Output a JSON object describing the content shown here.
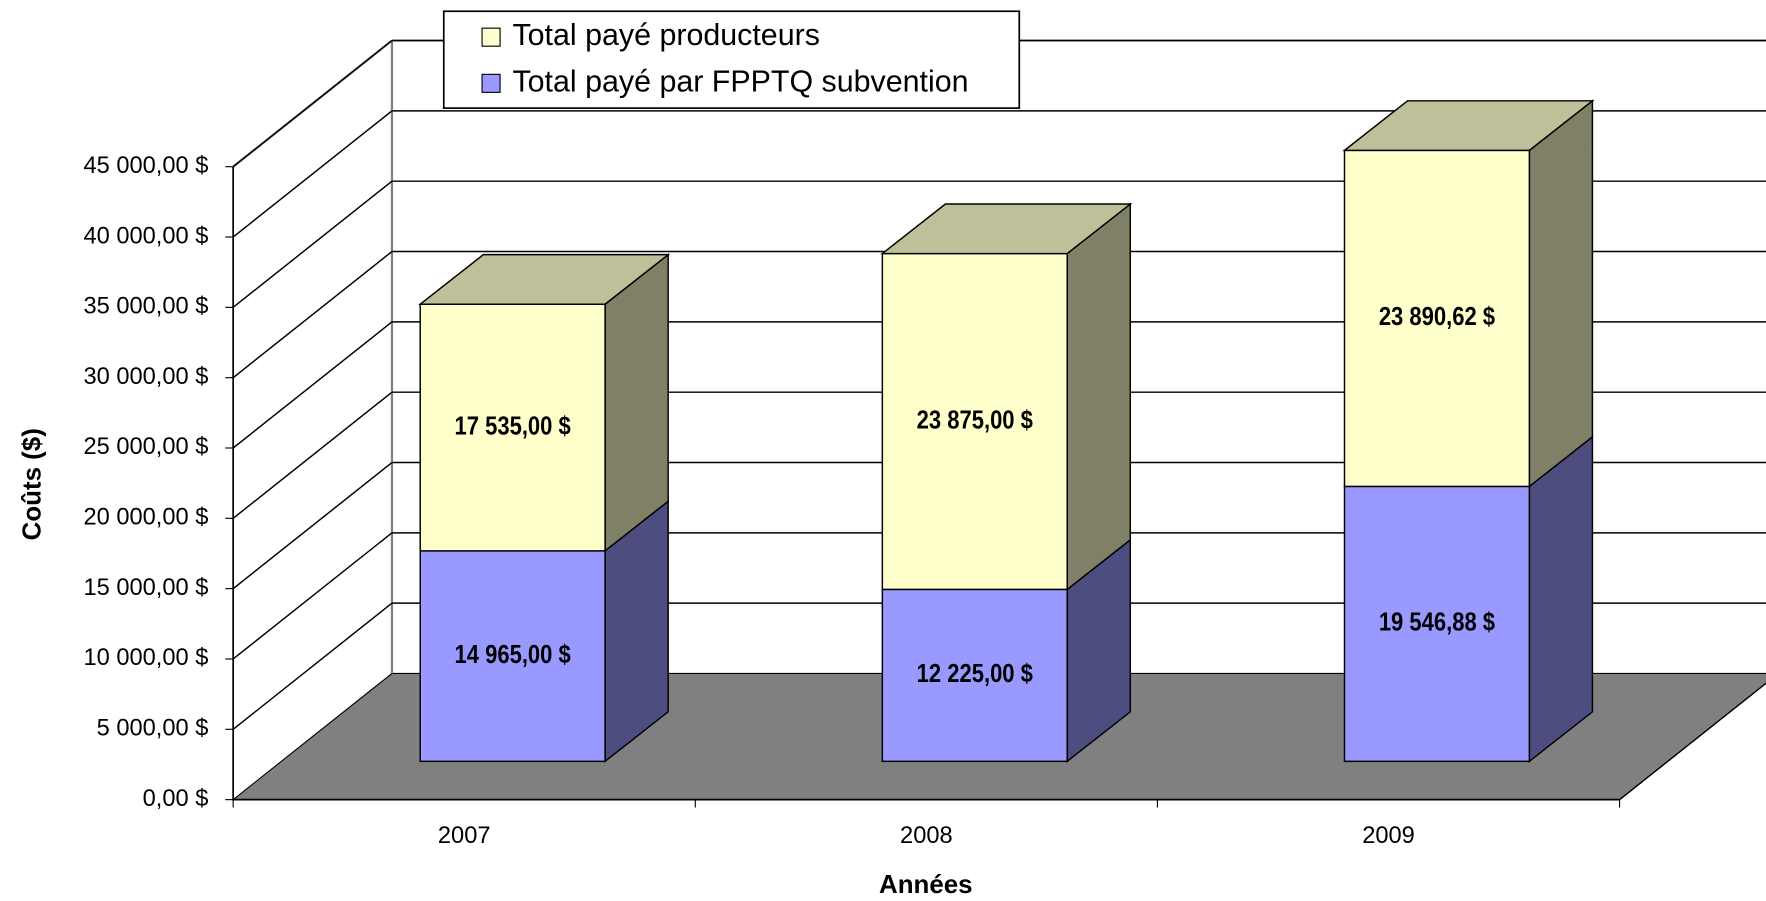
{
  "chart_data": {
    "type": "bar3d_stacked",
    "xlabel": "Années",
    "ylabel": "Coûts ($)",
    "categories": [
      "2007",
      "2008",
      "2009"
    ],
    "series": [
      {
        "name": "Total payé par FPPTQ subvention",
        "color": "#9999ff",
        "values": [
          14965,
          12225,
          19546.88
        ],
        "value_labels": [
          "14 965,00 $",
          "12 225,00 $",
          "19 546,88 $"
        ]
      },
      {
        "name": "Total payé producteurs",
        "color": "#ffffcc",
        "values": [
          17535,
          23875,
          23890.62
        ],
        "value_labels": [
          "17 535,00 $",
          "23 875,00 $",
          "23 890,62 $"
        ]
      }
    ],
    "ylim": [
      0,
      45000
    ],
    "yticks": [
      {
        "value": 0,
        "label": "0,00 $"
      },
      {
        "value": 5000,
        "label": "5 000,00 $"
      },
      {
        "value": 10000,
        "label": "10 000,00 $"
      },
      {
        "value": 15000,
        "label": "15 000,00 $"
      },
      {
        "value": 20000,
        "label": "20 000,00 $"
      },
      {
        "value": 25000,
        "label": "25 000,00 $"
      },
      {
        "value": 30000,
        "label": "30 000,00 $"
      },
      {
        "value": 35000,
        "label": "35 000,00 $"
      },
      {
        "value": 40000,
        "label": "40 000,00 $"
      },
      {
        "value": 45000,
        "label": "45 000,00 $"
      }
    ],
    "grid": true,
    "legend": "top",
    "floor_color": "#808080"
  }
}
